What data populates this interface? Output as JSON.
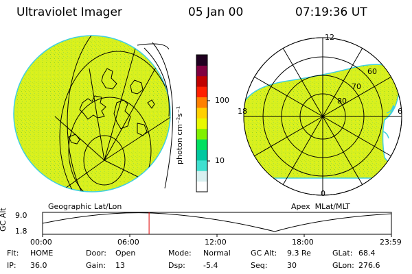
{
  "header": {
    "instrument": "Ultraviolet Imager",
    "date": "05 Jan 00",
    "time": "07:19:36 UT"
  },
  "colorbar": {
    "unit_label": "photon cm⁻²s⁻¹",
    "ticks": [
      "100",
      "10"
    ],
    "tick_values": [
      100,
      10
    ],
    "colors": [
      "#ffffff",
      "#d8f0f0",
      "#40e0d0",
      "#00c8a0",
      "#00e060",
      "#80f000",
      "#e8f800",
      "#ffd000",
      "#ff8000",
      "#ff2000",
      "#c00000",
      "#800040",
      "#200020"
    ]
  },
  "panels": {
    "left_caption": "Geographic Lat/Lon",
    "right_caption": "Apex  MLat/MLT",
    "fill_color": "#d8f020",
    "edge_color": "#40d0e0",
    "polar_labels": {
      "top": "12",
      "bottom": "0",
      "left": "18",
      "right": "6",
      "lat60": "60",
      "lat70": "70",
      "lat80": "80"
    }
  },
  "timeline": {
    "y_axis_label": "GC Alt",
    "y_ticks": [
      "9.0",
      "1.8"
    ],
    "x_ticks": [
      "00:00",
      "06:00",
      "12:00",
      "18:00",
      "23:59"
    ],
    "current_time_marker": "07:19:36",
    "current_fraction": 0.3053,
    "marker_color": "#e00000"
  },
  "status": {
    "row1": [
      {
        "label": "Flt:",
        "value": "HOME"
      },
      {
        "label": "Door:",
        "value": "Open"
      },
      {
        "label": "Mode:",
        "value": "Normal"
      },
      {
        "label": "GC Alt:",
        "value": "9.3 Re"
      },
      {
        "label": "GLat:",
        "value": "68.4"
      }
    ],
    "row2": [
      {
        "label": "IP:",
        "value": "36.0"
      },
      {
        "label": "Gain:",
        "value": "13"
      },
      {
        "label": "Dsp:",
        "value": "-5.4"
      },
      {
        "label": "Seq:",
        "value": "30"
      },
      {
        "label": "GLon:",
        "value": "276.6"
      }
    ]
  }
}
